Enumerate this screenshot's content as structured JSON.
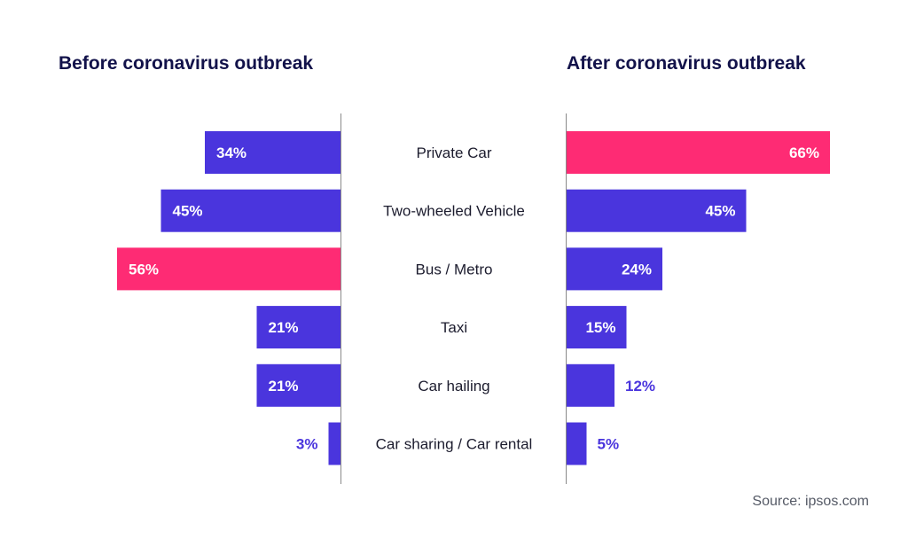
{
  "chart_data": {
    "type": "bar",
    "orientation": "horizontal",
    "layout": "back-to-back",
    "categories": [
      "Private Car",
      "Two-wheeled Vehicle",
      "Bus / Metro",
      "Taxi",
      "Car hailing",
      "Car sharing / Car rental"
    ],
    "series": [
      {
        "name": "Before coronavirus outbreak",
        "values": [
          34,
          45,
          56,
          21,
          21,
          3
        ],
        "labels": [
          "34%",
          "45%",
          "56%",
          "21%",
          "21%",
          "3%"
        ],
        "highlight_index": 2
      },
      {
        "name": "After coronavirus outbreak",
        "values": [
          66,
          45,
          24,
          15,
          12,
          5
        ],
        "labels": [
          "66%",
          "45%",
          "24%",
          "15%",
          "12%",
          "5%"
        ],
        "highlight_index": 0
      }
    ],
    "unit": "%",
    "xlim": [
      0,
      66
    ],
    "source": "Source: ipsos.com",
    "colors": {
      "bar": "#4a35dd",
      "highlight": "#fe2b74",
      "title": "#12124a",
      "label_inside": "#ffffff",
      "label_outside": "#4a35dd"
    }
  }
}
